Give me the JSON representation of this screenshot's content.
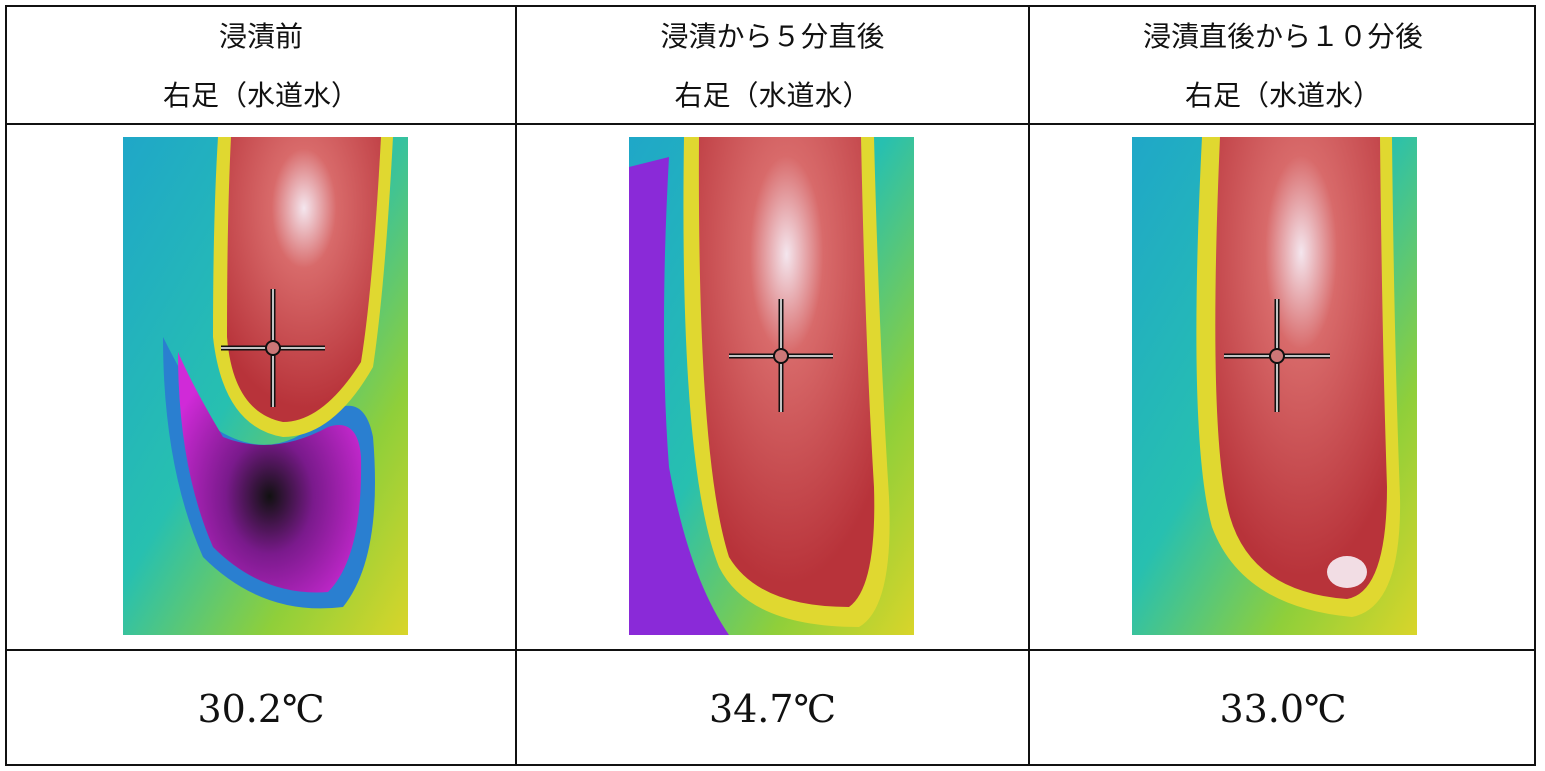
{
  "table": {
    "header": [
      [
        "浸漬前",
        "右足（水道水）"
      ],
      [
        "浸漬から５分直後",
        "右足（水道水）"
      ],
      [
        "浸漬直後から１０分後",
        "右足（水道水）"
      ]
    ],
    "values": [
      "30.2℃",
      "34.7℃",
      "33.0℃"
    ]
  }
}
